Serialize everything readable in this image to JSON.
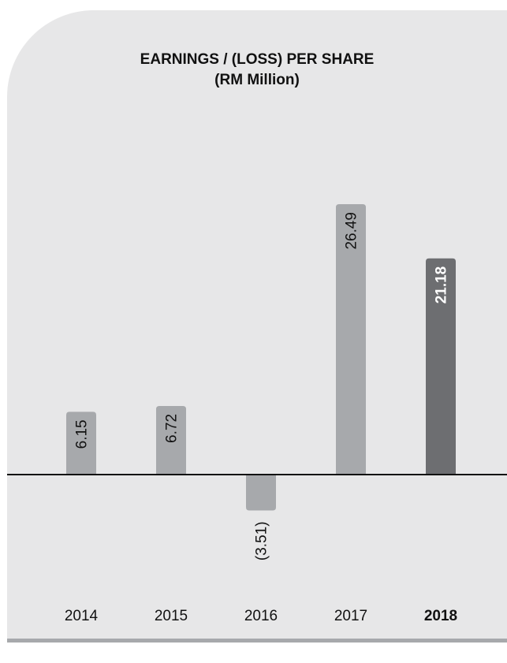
{
  "chart_data": {
    "type": "bar",
    "title": "EARNINGS / (LOSS) PER SHARE",
    "subtitle": "(RM Million)",
    "categories": [
      "2014",
      "2015",
      "2016",
      "2017",
      "2018"
    ],
    "values": [
      6.15,
      6.72,
      -3.51,
      26.49,
      21.18
    ],
    "value_labels": [
      "6.15",
      "6.72",
      "(3.51)",
      "26.49",
      "21.18"
    ],
    "highlight": "2018",
    "ylim": [
      -3.51,
      26.49
    ],
    "grid": false,
    "colors": {
      "bar": "#a7a9ac",
      "highlight_bar": "#6d6e71",
      "background": "#e7e7e8",
      "axis": "#111111"
    }
  }
}
